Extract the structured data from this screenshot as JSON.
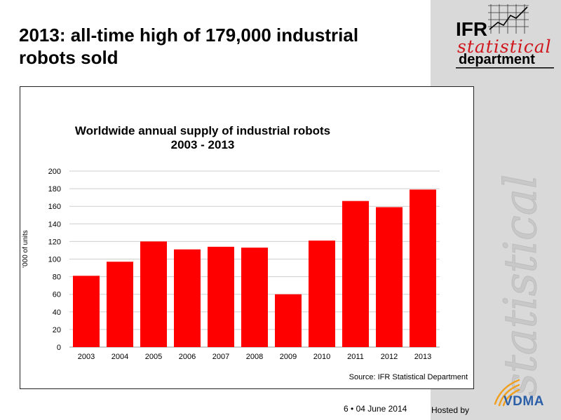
{
  "slide": {
    "title_line1": "2013: all-time high of  179,000 industrial",
    "title_line2": "robots sold",
    "page_number": "6",
    "bullet": "•",
    "date": "04 June 2014",
    "hosted_by": "Hosted by"
  },
  "logo": {
    "ifr": "IFR",
    "statistical": "statistical",
    "department": "department",
    "vdma": "VDMA",
    "watermark": "statistical",
    "accent_color": "#d0181f"
  },
  "chart_data": {
    "type": "bar",
    "title_line1": "Worldwide annual supply of industrial robots",
    "title_line2": "2003 - 2013",
    "ylabel": "'000 of units",
    "xlabel": "",
    "categories": [
      "2003",
      "2004",
      "2005",
      "2006",
      "2007",
      "2008",
      "2009",
      "2010",
      "2011",
      "2012",
      "2013"
    ],
    "values": [
      81,
      97,
      120,
      111,
      114,
      113,
      60,
      121,
      166,
      159,
      179
    ],
    "ylim": [
      0,
      200
    ],
    "yticks": [
      0,
      20,
      40,
      60,
      80,
      100,
      120,
      140,
      160,
      180,
      200
    ],
    "grid": true,
    "bar_color": "#ff0000",
    "source": "Source: IFR Statistical Department"
  }
}
